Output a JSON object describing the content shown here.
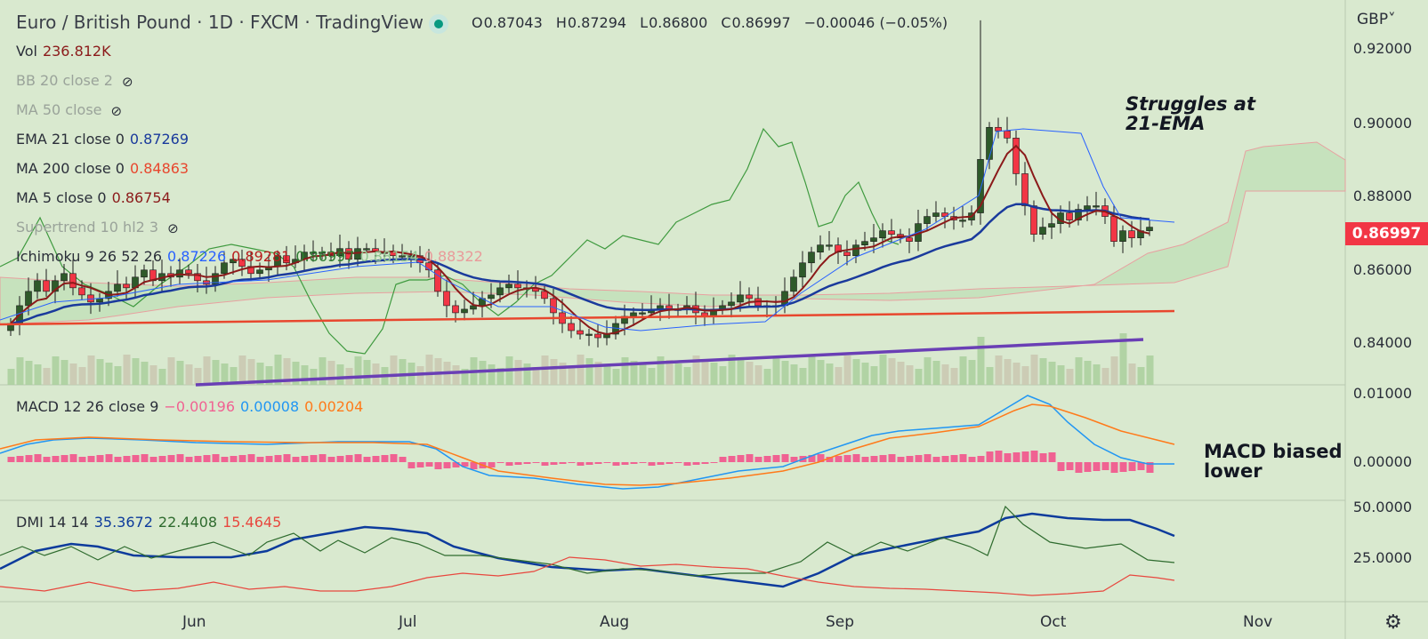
{
  "header": {
    "title": "Euro / British Pound · 1D · FXCM · TradingView",
    "ohlc": {
      "o_label": "O",
      "o": "0.87043",
      "h_label": "H",
      "h": "0.87294",
      "l_label": "L",
      "l": "0.86800",
      "c_label": "C",
      "c": "0.86997",
      "chg": "−0.00046 (−0.05%)"
    }
  },
  "currency": "GBP",
  "last_price": "0.86997",
  "indicators": {
    "vol": {
      "name": "Vol",
      "value": "236.812K"
    },
    "bb": {
      "name": "BB 20 close 2"
    },
    "ma50": {
      "name": "MA 50 close"
    },
    "ema21": {
      "name": "EMA 21 close 0",
      "value": "0.87269"
    },
    "ma200": {
      "name": "MA 200 close 0",
      "value": "0.84863"
    },
    "ma5": {
      "name": "MA 5 close 0",
      "value": "0.86754"
    },
    "supertrend": {
      "name": "Supertrend 10 hl2 3"
    },
    "ichimoku": {
      "name": "Ichimoku 9 26 52 26",
      "v1": "0.87226",
      "v2": "0.89281",
      "v3": "0.86997",
      "v4": "0.88154",
      "v5": "0.88322"
    },
    "macd": {
      "name": "MACD 12 26 close 9",
      "v1": "−0.00196",
      "v2": "0.00008",
      "v3": "0.00204"
    },
    "dmi": {
      "name": "DMI 14 14",
      "v1": "35.3672",
      "v2": "22.4408",
      "v3": "15.4645"
    }
  },
  "price_axis": [
    "0.92000",
    "0.90000",
    "0.88000",
    "0.86000",
    "0.84000"
  ],
  "macd_axis": [
    "0.01000",
    "0.00000"
  ],
  "dmi_axis": [
    "50.0000",
    "25.0000"
  ],
  "time_axis": [
    "Jun",
    "Jul",
    "Aug",
    "Sep",
    "Oct",
    "Nov"
  ],
  "annotations": {
    "struggles": [
      "Struggles at",
      "21-EMA"
    ],
    "macd": [
      "MACD biased",
      "lower"
    ]
  },
  "colors": {
    "bull": "#2e5a2a",
    "bear": "#f23645",
    "ema21": "#1a3a9c",
    "ma200": "#e8472e",
    "ma5": "#8b1a1a",
    "trend": "#6a3fb5",
    "macd": "#2196f3",
    "signal": "#ff7a1a",
    "hist": "#f06292"
  },
  "chart_data": {
    "type": "candlestick",
    "closes": [
      0.843,
      0.848,
      0.852,
      0.855,
      0.852,
      0.855,
      0.857,
      0.853,
      0.851,
      0.849,
      0.85,
      0.852,
      0.854,
      0.853,
      0.856,
      0.858,
      0.855,
      0.857,
      0.856,
      0.858,
      0.857,
      0.855,
      0.854,
      0.857,
      0.86,
      0.861,
      0.859,
      0.857,
      0.858,
      0.859,
      0.862,
      0.86,
      0.861,
      0.863,
      0.863,
      0.863,
      0.862,
      0.864,
      0.861,
      0.864,
      0.864,
      0.863,
      0.863,
      0.862,
      0.862,
      0.862,
      0.86,
      0.858,
      0.852,
      0.848,
      0.846,
      0.847,
      0.848,
      0.85,
      0.851,
      0.853,
      0.854,
      0.853,
      0.853,
      0.852,
      0.85,
      0.846,
      0.843,
      0.841,
      0.84,
      0.84,
      0.839,
      0.84,
      0.843,
      0.845,
      0.846,
      0.846,
      0.847,
      0.848,
      0.847,
      0.847,
      0.848,
      0.846,
      0.845,
      0.847,
      0.848,
      0.849,
      0.851,
      0.85,
      0.848,
      0.848,
      0.848,
      0.852,
      0.856,
      0.86,
      0.863,
      0.865,
      0.865,
      0.863,
      0.862,
      0.865,
      0.866,
      0.867,
      0.869,
      0.868,
      0.867,
      0.866,
      0.871,
      0.873,
      0.874,
      0.873,
      0.872,
      0.872,
      0.874,
      0.889,
      0.898,
      0.897,
      0.895,
      0.885,
      0.876,
      0.868,
      0.87,
      0.871,
      0.874,
      0.872,
      0.875,
      0.876,
      0.876,
      0.873,
      0.866,
      0.869,
      0.867,
      0.869,
      0.87
    ]
  }
}
